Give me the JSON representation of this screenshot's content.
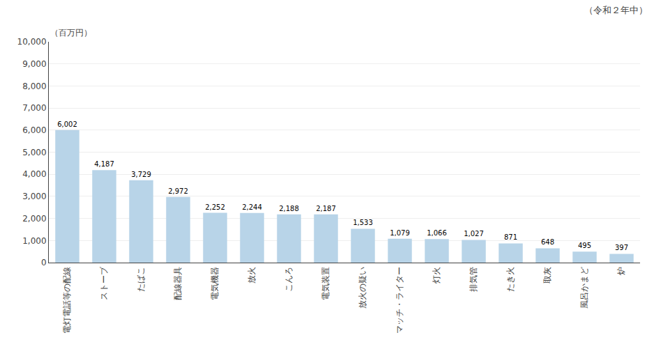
{
  "chart_data": {
    "type": "bar",
    "title": "（令和２年中）",
    "ylabel": "（百万円）",
    "categories": [
      "電灯電話等の配線",
      "ストーブ",
      "たばこ",
      "配線器具",
      "電気機器",
      "放火",
      "こんろ",
      "電気装置",
      "放火の疑い",
      "マッチ・ライター",
      "灯火",
      "排気管",
      "たき火",
      "取灰",
      "風呂かまど",
      "炉"
    ],
    "values": [
      6002,
      4187,
      3729,
      2972,
      2252,
      2244,
      2188,
      2187,
      1533,
      1079,
      1066,
      1027,
      871,
      648,
      495,
      397
    ],
    "value_labels": [
      "6,002",
      "4,187",
      "3,729",
      "2,972",
      "2,252",
      "2,244",
      "2,188",
      "2,187",
      "1,533",
      "1,079",
      "1,066",
      "1,027",
      "871",
      "648",
      "495",
      "397"
    ],
    "data_labels": true,
    "color": "#b8d4e8",
    "ylim": [
      0,
      10000
    ],
    "yticks": [
      0,
      {
        "value": 1000,
        "label": "1,000"
      },
      {
        "value": 2000,
        "label": "2,000"
      },
      {
        "value": 3000,
        "label": "3,000"
      },
      {
        "value": 4000,
        "label": "4,000"
      },
      {
        "value": 5000,
        "label": "5,000"
      },
      {
        "value": 6000,
        "label": "6,000"
      },
      {
        "value": 7000,
        "label": "7,000"
      },
      {
        "value": 8000,
        "label": "8,000"
      },
      {
        "value": 9000,
        "label": "9,000"
      },
      {
        "value": 10000,
        "label": "10,000"
      }
    ],
    "grid": true
  }
}
